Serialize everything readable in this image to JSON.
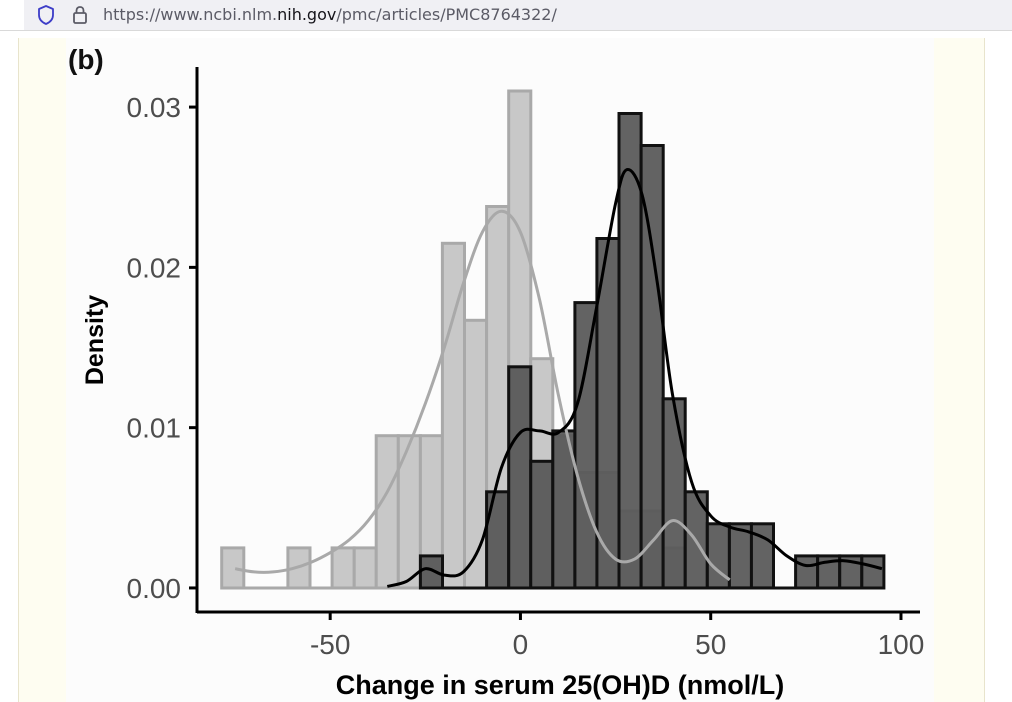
{
  "browser": {
    "url_prefix": "https://www.ncbi.nlm.",
    "url_domain": "nih.gov",
    "url_suffix": "/pmc/articles/PMC8764322/",
    "shield_icon": "shield-icon",
    "lock_icon": "lock-icon"
  },
  "figure": {
    "panel_label": "(b)"
  },
  "chart_data": {
    "type": "bar",
    "subtype": "overlaid histogram with density curves",
    "title": "",
    "xlabel": "Change in serum 25(OH)D (nmol/L)",
    "ylabel": "Density",
    "xlim": [
      -85,
      105
    ],
    "ylim": [
      -0.0015,
      0.0325
    ],
    "x_ticks": [
      {
        "value": -50,
        "label": "-50"
      },
      {
        "value": 0,
        "label": "0"
      },
      {
        "value": 50,
        "label": "50"
      },
      {
        "value": 100,
        "label": "100"
      }
    ],
    "y_ticks": [
      {
        "value": 0,
        "label": "0.00"
      },
      {
        "value": 0.01,
        "label": "0.01"
      },
      {
        "value": 0.02,
        "label": "0.02"
      },
      {
        "value": 0.03,
        "label": "0.03"
      }
    ],
    "grid": false,
    "legend": "none",
    "bin_width": 5.8,
    "series": [
      {
        "color": "#c8c8c8",
        "stroke": "#a9a9a9",
        "curve_color": "#a9a9a9",
        "bins": [
          {
            "start": -78.5,
            "value": 0.0025
          },
          {
            "start": -72.7,
            "value": 0
          },
          {
            "start": -66.9,
            "value": 0
          },
          {
            "start": -61.1,
            "value": 0.0025
          },
          {
            "start": -55.3,
            "value": 0
          },
          {
            "start": -49.5,
            "value": 0.0025
          },
          {
            "start": -43.7,
            "value": 0.0025
          },
          {
            "start": -37.9,
            "value": 0.0095
          },
          {
            "start": -32.1,
            "value": 0.0095
          },
          {
            "start": -26.3,
            "value": 0.0095
          },
          {
            "start": -20.5,
            "value": 0.0215
          },
          {
            "start": -14.7,
            "value": 0.0167
          },
          {
            "start": -8.9,
            "value": 0.0238
          },
          {
            "start": -3.1,
            "value": 0.031
          },
          {
            "start": 2.7,
            "value": 0.0143
          },
          {
            "start": 8.5,
            "value": 0.0095
          },
          {
            "start": 14.3,
            "value": 0.0072
          },
          {
            "start": 20.1,
            "value": 0.0072
          },
          {
            "start": 25.9,
            "value": 0.0048
          },
          {
            "start": 31.7,
            "value": 0.0048
          },
          {
            "start": 37.5,
            "value": 0.0025
          }
        ],
        "density_curve": [
          [
            -75,
            0.0012
          ],
          [
            -70,
            0.001
          ],
          [
            -65,
            0.001
          ],
          [
            -60,
            0.0012
          ],
          [
            -55,
            0.0016
          ],
          [
            -50,
            0.0022
          ],
          [
            -45,
            0.003
          ],
          [
            -40,
            0.0042
          ],
          [
            -35,
            0.006
          ],
          [
            -30,
            0.0085
          ],
          [
            -25,
            0.0115
          ],
          [
            -20,
            0.015
          ],
          [
            -15,
            0.019
          ],
          [
            -10,
            0.0222
          ],
          [
            -5,
            0.0235
          ],
          [
            0,
            0.0222
          ],
          [
            5,
            0.018
          ],
          [
            10,
            0.012
          ],
          [
            15,
            0.007
          ],
          [
            20,
            0.0035
          ],
          [
            25,
            0.0018
          ],
          [
            30,
            0.0018
          ],
          [
            35,
            0.003
          ],
          [
            40,
            0.0042
          ],
          [
            45,
            0.0033
          ],
          [
            50,
            0.0015
          ],
          [
            55,
            0.0005
          ]
        ]
      },
      {
        "color": "#575757",
        "stroke": "#111111",
        "curve_color": "#000000",
        "bins": [
          {
            "start": -26.3,
            "value": 0.002
          },
          {
            "start": -20.5,
            "value": 0
          },
          {
            "start": -14.7,
            "value": 0
          },
          {
            "start": -8.9,
            "value": 0.006
          },
          {
            "start": -3.1,
            "value": 0.0138
          },
          {
            "start": 2.7,
            "value": 0.0079
          },
          {
            "start": 8.5,
            "value": 0.0098
          },
          {
            "start": 14.3,
            "value": 0.0178
          },
          {
            "start": 20.1,
            "value": 0.0218
          },
          {
            "start": 25.9,
            "value": 0.0296
          },
          {
            "start": 31.7,
            "value": 0.0276
          },
          {
            "start": 37.5,
            "value": 0.0118
          },
          {
            "start": 43.3,
            "value": 0.006
          },
          {
            "start": 49.1,
            "value": 0.004
          },
          {
            "start": 54.9,
            "value": 0.004
          },
          {
            "start": 60.7,
            "value": 0.004
          },
          {
            "start": 66.5,
            "value": 0
          },
          {
            "start": 72.3,
            "value": 0.002
          },
          {
            "start": 78.1,
            "value": 0.002
          },
          {
            "start": 83.9,
            "value": 0.002
          },
          {
            "start": 89.7,
            "value": 0.002
          }
        ],
        "density_curve": [
          [
            -35,
            0.0001
          ],
          [
            -30,
            0.0004
          ],
          [
            -25,
            0.0012
          ],
          [
            -20,
            0.0008
          ],
          [
            -15,
            0.001
          ],
          [
            -10,
            0.003
          ],
          [
            -5,
            0.0075
          ],
          [
            0,
            0.0097
          ],
          [
            5,
            0.0098
          ],
          [
            10,
            0.0097
          ],
          [
            15,
            0.0115
          ],
          [
            20,
            0.0175
          ],
          [
            25,
            0.024
          ],
          [
            28,
            0.0261
          ],
          [
            32,
            0.0245
          ],
          [
            36,
            0.019
          ],
          [
            40,
            0.012
          ],
          [
            45,
            0.0066
          ],
          [
            50,
            0.0045
          ],
          [
            55,
            0.0038
          ],
          [
            60,
            0.0035
          ],
          [
            65,
            0.003
          ],
          [
            70,
            0.002
          ],
          [
            75,
            0.0014
          ],
          [
            80,
            0.0016
          ],
          [
            85,
            0.0017
          ],
          [
            90,
            0.0015
          ],
          [
            95,
            0.0012
          ]
        ]
      }
    ]
  }
}
